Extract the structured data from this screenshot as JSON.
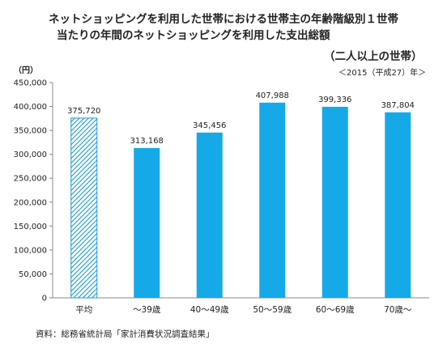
{
  "title_line1": "ネットショッピングを利用した世帯における世帯主の年齢階級別１世帯",
  "title_line2": "当たりの年間のネットショッピングを利用した支出総額",
  "subtitle": "（二人以上の世帯）",
  "y_unit": "（円）",
  "year_note": "＜2015（平成27）年＞",
  "source": "資料：総務省統計局「家計消費状況調査結果」",
  "colors": {
    "bar": "#16A9E8",
    "hatch_line": "#1A9AD6",
    "axis": "#888888",
    "grid": "#d9d9d9"
  },
  "chart_data": {
    "type": "bar",
    "categories": [
      "平均",
      "～39歳",
      "40～49歳",
      "50～59歳",
      "60～69歳",
      "70歳～"
    ],
    "values": [
      375720,
      313168,
      345456,
      407988,
      399336,
      387804
    ],
    "value_labels": [
      "375,720",
      "313,168",
      "345,456",
      "407,988",
      "399,336",
      "387,804"
    ],
    "bar_styles": [
      "hatched",
      "solid",
      "solid",
      "solid",
      "solid",
      "solid"
    ],
    "ylim": [
      0,
      450000
    ],
    "yticks": [
      0,
      50000,
      100000,
      150000,
      200000,
      250000,
      300000,
      350000,
      400000,
      450000
    ],
    "ytick_labels": [
      "0",
      "50,000",
      "100,000",
      "150,000",
      "200,000",
      "250,000",
      "300,000",
      "350,000",
      "400,000",
      "450,000"
    ],
    "grid": false,
    "legend": "none"
  }
}
